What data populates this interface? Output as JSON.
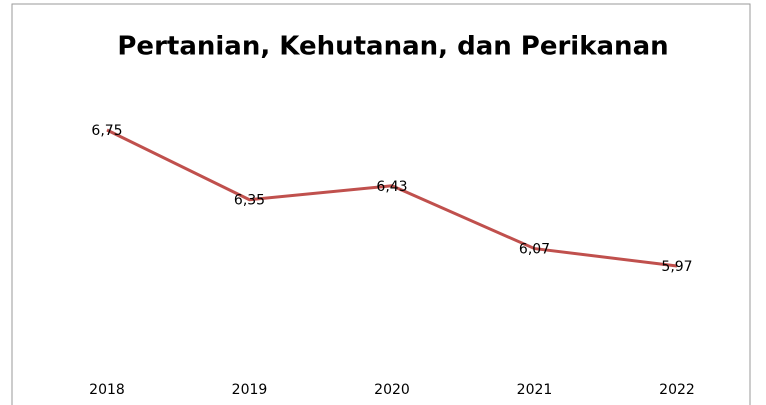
{
  "chart_data": {
    "type": "line",
    "title": "Pertanian, Kehutanan, dan Perikanan",
    "categories": [
      "2018",
      "2019",
      "2020",
      "2021",
      "2022"
    ],
    "series": [
      {
        "color": "#c0504d",
        "values": [
          6.75,
          6.35,
          6.43,
          6.07,
          5.97
        ],
        "value_labels": [
          "6,75",
          "6,35",
          "6,43",
          "6,07",
          "5,97"
        ]
      }
    ]
  }
}
